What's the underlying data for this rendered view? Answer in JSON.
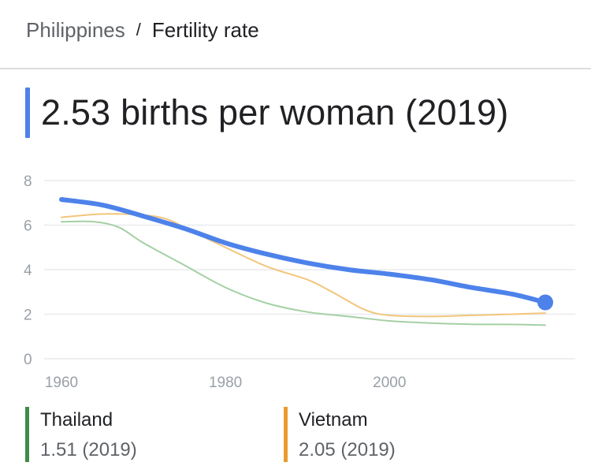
{
  "breadcrumb": {
    "parent": "Philippines",
    "separator": "/",
    "current": "Fertility rate"
  },
  "headline": "2.53 births per woman (2019)",
  "colors": {
    "primary": "#4d82ea",
    "thailand": "#a4d0a4",
    "vietnam": "#f2c57c",
    "thailand_swatch": "#3e8c47",
    "vietnam_swatch": "#e99b2f",
    "grid": "#e8eaed"
  },
  "legend": [
    {
      "name": "Thailand",
      "value": "1.51 (2019)"
    },
    {
      "name": "Vietnam",
      "value": "2.05 (2019)"
    }
  ],
  "chart_data": {
    "type": "line",
    "xlim": [
      1960,
      2019
    ],
    "ylim": [
      0,
      8
    ],
    "x_ticks": [
      1960,
      1980,
      2000
    ],
    "y_ticks": [
      0,
      2,
      4,
      6,
      8
    ],
    "grid": true,
    "series": [
      {
        "name": "Philippines",
        "color": "#4d82ea",
        "highlight_last": true,
        "points": [
          [
            1960,
            7.15
          ],
          [
            1965,
            6.9
          ],
          [
            1970,
            6.4
          ],
          [
            1975,
            5.85
          ],
          [
            1980,
            5.2
          ],
          [
            1985,
            4.7
          ],
          [
            1990,
            4.3
          ],
          [
            1995,
            4.0
          ],
          [
            2000,
            3.8
          ],
          [
            2005,
            3.55
          ],
          [
            2010,
            3.2
          ],
          [
            2015,
            2.9
          ],
          [
            2019,
            2.53
          ]
        ]
      },
      {
        "name": "Thailand",
        "color": "#a4d0a4",
        "points": [
          [
            1960,
            6.15
          ],
          [
            1964,
            6.15
          ],
          [
            1967,
            5.9
          ],
          [
            1970,
            5.2
          ],
          [
            1975,
            4.2
          ],
          [
            1980,
            3.2
          ],
          [
            1985,
            2.5
          ],
          [
            1990,
            2.1
          ],
          [
            1995,
            1.9
          ],
          [
            2000,
            1.7
          ],
          [
            2005,
            1.6
          ],
          [
            2010,
            1.55
          ],
          [
            2015,
            1.54
          ],
          [
            2019,
            1.51
          ]
        ]
      },
      {
        "name": "Vietnam",
        "color": "#f2c57c",
        "points": [
          [
            1960,
            6.35
          ],
          [
            1965,
            6.5
          ],
          [
            1970,
            6.45
          ],
          [
            1973,
            6.25
          ],
          [
            1976,
            5.7
          ],
          [
            1980,
            5.0
          ],
          [
            1985,
            4.15
          ],
          [
            1990,
            3.55
          ],
          [
            1993,
            3.0
          ],
          [
            1997,
            2.2
          ],
          [
            2000,
            1.95
          ],
          [
            2005,
            1.9
          ],
          [
            2010,
            1.95
          ],
          [
            2015,
            2.0
          ],
          [
            2019,
            2.05
          ]
        ]
      }
    ]
  }
}
